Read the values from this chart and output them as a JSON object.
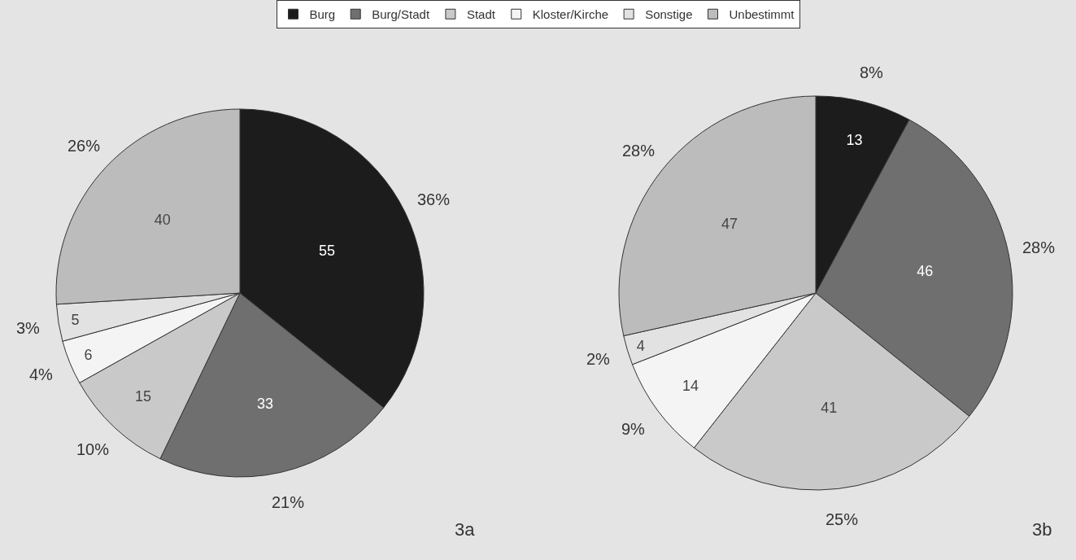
{
  "chart_data": [
    {
      "type": "pie",
      "title": "3a",
      "categories": [
        "Burg",
        "Burg/Stadt",
        "Stadt",
        "Kloster/Kirche",
        "Sonstige",
        "Unbestimmt"
      ],
      "values": [
        55,
        33,
        15,
        6,
        5,
        40
      ],
      "colors": [
        "#1c1c1c",
        "#6f6f6f",
        "#c9c9c9",
        "#f4f4f4",
        "#e2e2e2",
        "#bcbcbc"
      ],
      "data_labels": true,
      "annotations": [
        "36%",
        "21%",
        "10%",
        "4%",
        "3%",
        "26%"
      ],
      "legend": "top"
    },
    {
      "type": "pie",
      "title": "3b",
      "categories": [
        null,
        null,
        null,
        null,
        null,
        null
      ],
      "values": [
        13,
        46,
        41,
        14,
        4,
        47
      ],
      "colors": [
        "#1c1c1c",
        "#6f6f6f",
        "#c9c9c9",
        "#f4f4f4",
        "#e2e2e2",
        "#bcbcbc"
      ],
      "data_labels": true,
      "annotations": [
        "8%",
        "28%",
        "25%",
        "9%",
        "2%",
        "28%"
      ]
    }
  ]
}
